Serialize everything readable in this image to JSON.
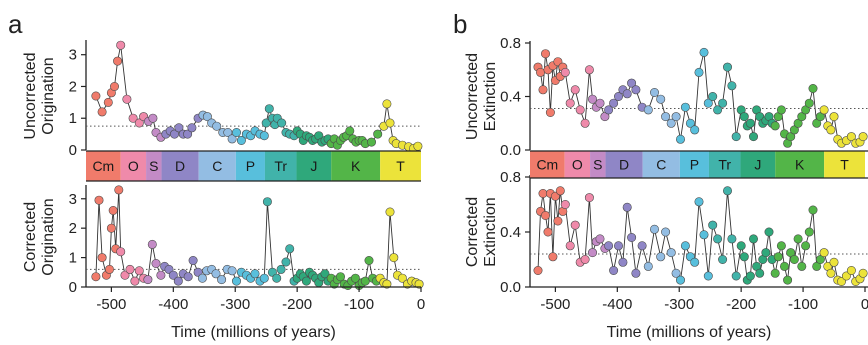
{
  "periods": [
    {
      "label": "Cm",
      "start": -541,
      "end": -485,
      "color": "#f07b6b"
    },
    {
      "label": "O",
      "start": -485,
      "end": -444,
      "color": "#ef8aaa"
    },
    {
      "label": "S",
      "start": -444,
      "end": -419,
      "color": "#c38bc6"
    },
    {
      "label": "D",
      "start": -419,
      "end": -359,
      "color": "#8f86c6"
    },
    {
      "label": "C",
      "start": -359,
      "end": -299,
      "color": "#93bde3"
    },
    {
      "label": "P",
      "start": -299,
      "end": -252,
      "color": "#58bfdc"
    },
    {
      "label": "Tr",
      "start": -252,
      "end": -201,
      "color": "#41b3aa"
    },
    {
      "label": "J",
      "start": -201,
      "end": -145,
      "color": "#2fa87b"
    },
    {
      "label": "K",
      "start": -145,
      "end": -66,
      "color": "#53b548"
    },
    {
      "label": "T",
      "start": -66,
      "end": 0,
      "color": "#ece33a"
    }
  ],
  "chart_data": [
    {
      "panel": "a",
      "type": "line",
      "ylabel": [
        "Uncorrected",
        "Origination"
      ],
      "ylim": [
        0,
        3.4
      ],
      "yticks": [
        "0",
        "1",
        "2",
        "3"
      ],
      "mean": 0.75,
      "x": [
        -525,
        -515,
        -505,
        -500,
        -495,
        -490,
        -485,
        -475,
        -465,
        -455,
        -448,
        -440,
        -433,
        -428,
        -420,
        -412,
        -405,
        -398,
        -391,
        -384,
        -377,
        -370,
        -360,
        -352,
        -345,
        -338,
        -330,
        -320,
        -312,
        -305,
        -298,
        -290,
        -282,
        -275,
        -268,
        -260,
        -253,
        -250,
        -245,
        -240,
        -236,
        -232,
        -225,
        -218,
        -212,
        -205,
        -200,
        -195,
        -190,
        -185,
        -180,
        -175,
        -170,
        -165,
        -160,
        -155,
        -150,
        -145,
        -140,
        -135,
        -130,
        -125,
        -120,
        -115,
        -110,
        -105,
        -100,
        -95,
        -90,
        -80,
        -70,
        -60,
        -55,
        -50,
        -45,
        -40,
        -30,
        -20,
        -12,
        -5
      ],
      "y": [
        1.7,
        1.2,
        1.5,
        1.8,
        2.0,
        2.8,
        3.3,
        1.6,
        1.0,
        0.85,
        1.05,
        0.9,
        1.0,
        0.55,
        0.4,
        0.5,
        0.6,
        0.5,
        0.7,
        0.5,
        0.5,
        0.7,
        1.0,
        1.1,
        1.05,
        0.85,
        0.75,
        0.55,
        0.55,
        0.35,
        0.55,
        0.3,
        0.5,
        0.45,
        0.6,
        0.5,
        0.45,
        0.85,
        1.3,
        1.0,
        0.8,
        1.0,
        0.85,
        0.55,
        0.5,
        0.45,
        0.6,
        0.5,
        0.3,
        0.45,
        0.4,
        0.3,
        0.35,
        0.45,
        0.25,
        0.3,
        0.35,
        0.2,
        0.35,
        0.15,
        0.3,
        0.4,
        0.45,
        0.6,
        0.35,
        0.25,
        0.3,
        0.3,
        0.2,
        0.25,
        0.5,
        0.75,
        1.45,
        0.85,
        0.3,
        0.2,
        0.15,
        0.1,
        0.05,
        0.12
      ]
    },
    {
      "panel": "a",
      "type": "line",
      "ylabel": [
        "Corrected",
        "Origination"
      ],
      "ylim": [
        0,
        3.4
      ],
      "yticks": [
        "0",
        "1",
        "2",
        "3"
      ],
      "mean": 0.6,
      "x": [
        -525,
        -520,
        -515,
        -508,
        -503,
        -500,
        -497,
        -493,
        -488,
        -485,
        -478,
        -470,
        -462,
        -455,
        -448,
        -441,
        -434,
        -428,
        -420,
        -414,
        -407,
        -400,
        -392,
        -384,
        -376,
        -368,
        -360,
        -353,
        -346,
        -338,
        -331,
        -322,
        -313,
        -305,
        -298,
        -290,
        -282,
        -275,
        -268,
        -260,
        -253,
        -248,
        -240,
        -233,
        -226,
        -218,
        -212,
        -205,
        -200,
        -195,
        -190,
        -185,
        -180,
        -175,
        -170,
        -165,
        -160,
        -155,
        -150,
        -145,
        -140,
        -135,
        -130,
        -124,
        -118,
        -112,
        -106,
        -100,
        -95,
        -90,
        -84,
        -78,
        -72,
        -66,
        -60,
        -55,
        -50,
        -44,
        -38,
        -30,
        -22,
        -15,
        -8,
        -3
      ],
      "y": [
        0.35,
        2.95,
        1.0,
        0.4,
        0.6,
        2.0,
        2.6,
        1.3,
        3.3,
        1.2,
        0.4,
        0.6,
        0.2,
        0.55,
        0.3,
        0.25,
        1.45,
        0.8,
        0.4,
        0.7,
        0.6,
        0.4,
        0.2,
        0.45,
        0.35,
        0.9,
        0.5,
        0.3,
        0.55,
        0.6,
        0.45,
        0.25,
        0.6,
        0.55,
        0.2,
        0.5,
        0.4,
        0.3,
        0.45,
        0.2,
        0.3,
        2.9,
        0.5,
        0.3,
        0.6,
        0.85,
        1.3,
        0.2,
        0.3,
        0.45,
        0.35,
        0.2,
        0.5,
        0.4,
        0.3,
        0.15,
        0.35,
        0.45,
        0.2,
        0.3,
        0.1,
        0.25,
        0.35,
        0.1,
        0.05,
        0.2,
        0.3,
        0.05,
        0.15,
        0.2,
        0.9,
        0.3,
        0.2,
        0.3,
        0.15,
        0.1,
        2.55,
        1.0,
        0.4,
        0.3,
        0.1,
        0.2,
        0.15,
        0.1
      ]
    },
    {
      "panel": "b",
      "type": "line",
      "ylabel": [
        "Uncorrected",
        "Extinction"
      ],
      "ylim": [
        0,
        0.8
      ],
      "yticks": [
        "0.0",
        "0.4",
        "0.8"
      ],
      "mean": 0.31,
      "x": [
        -528,
        -524,
        -520,
        -516,
        -512,
        -508,
        -504,
        -500,
        -496,
        -492,
        -488,
        -484,
        -476,
        -468,
        -460,
        -452,
        -445,
        -440,
        -434,
        -428,
        -420,
        -414,
        -406,
        -398,
        -391,
        -384,
        -377,
        -370,
        -360,
        -350,
        -340,
        -330,
        -322,
        -313,
        -305,
        -298,
        -290,
        -282,
        -275,
        -268,
        -260,
        -253,
        -246,
        -238,
        -230,
        -222,
        -215,
        -208,
        -200,
        -195,
        -190,
        -185,
        -180,
        -175,
        -170,
        -165,
        -160,
        -155,
        -150,
        -145,
        -140,
        -135,
        -130,
        -125,
        -120,
        -114,
        -108,
        -102,
        -96,
        -90,
        -84,
        -78,
        -72,
        -66,
        -60,
        -55,
        -50,
        -44,
        -38,
        -30,
        -22,
        -15,
        -8,
        -3
      ],
      "y": [
        0.62,
        0.58,
        0.45,
        0.72,
        0.6,
        0.28,
        0.63,
        0.52,
        0.66,
        0.55,
        0.62,
        0.58,
        0.35,
        0.45,
        0.3,
        0.2,
        0.6,
        0.38,
        0.32,
        0.35,
        0.25,
        0.3,
        0.35,
        0.4,
        0.45,
        0.42,
        0.5,
        0.45,
        0.32,
        0.3,
        0.43,
        0.38,
        0.25,
        0.2,
        0.25,
        0.08,
        0.32,
        0.2,
        0.15,
        0.58,
        0.73,
        0.35,
        0.4,
        0.3,
        0.35,
        0.62,
        0.48,
        0.1,
        0.3,
        0.25,
        0.18,
        0.2,
        0.1,
        0.3,
        0.25,
        0.2,
        0.22,
        0.25,
        0.2,
        0.18,
        0.25,
        0.3,
        0.12,
        0.05,
        0.1,
        0.15,
        0.2,
        0.25,
        0.3,
        0.35,
        0.46,
        0.2,
        0.25,
        0.3,
        0.18,
        0.15,
        0.25,
        0.08,
        0.05,
        0.07,
        0.1,
        0.05,
        0.06,
        0.1
      ]
    },
    {
      "panel": "b",
      "type": "line",
      "ylabel": [
        "Corrected",
        "Extinction"
      ],
      "ylim": [
        0,
        0.8
      ],
      "yticks": [
        "0.0",
        "0.4",
        "0.8"
      ],
      "mean": 0.24,
      "x": [
        -528,
        -524,
        -520,
        -516,
        -512,
        -508,
        -504,
        -500,
        -496,
        -492,
        -488,
        -484,
        -476,
        -468,
        -460,
        -452,
        -445,
        -440,
        -434,
        -428,
        -420,
        -414,
        -406,
        -398,
        -391,
        -384,
        -377,
        -370,
        -360,
        -350,
        -340,
        -330,
        -322,
        -313,
        -305,
        -298,
        -290,
        -282,
        -275,
        -268,
        -260,
        -253,
        -246,
        -238,
        -230,
        -222,
        -215,
        -208,
        -200,
        -195,
        -190,
        -185,
        -180,
        -175,
        -170,
        -165,
        -160,
        -155,
        -150,
        -145,
        -140,
        -135,
        -130,
        -125,
        -120,
        -114,
        -108,
        -102,
        -96,
        -90,
        -84,
        -78,
        -72,
        -66,
        -60,
        -55,
        -50,
        -44,
        -38,
        -30,
        -22,
        -15,
        -8,
        -3
      ],
      "y": [
        0.12,
        0.55,
        0.68,
        0.52,
        0.4,
        0.68,
        0.22,
        0.66,
        0.48,
        0.7,
        0.55,
        0.6,
        0.3,
        0.45,
        0.18,
        0.2,
        0.65,
        0.25,
        0.33,
        0.35,
        0.28,
        0.3,
        0.12,
        0.3,
        0.18,
        0.58,
        0.36,
        0.1,
        0.3,
        0.15,
        0.42,
        0.22,
        0.4,
        0.25,
        0.1,
        0.05,
        0.3,
        0.22,
        0.18,
        0.62,
        0.38,
        0.08,
        0.45,
        0.35,
        0.2,
        0.7,
        0.35,
        0.08,
        0.3,
        0.22,
        0.05,
        0.08,
        0.35,
        0.15,
        0.1,
        0.2,
        0.25,
        0.4,
        0.2,
        0.1,
        0.22,
        0.3,
        0.15,
        0.05,
        0.25,
        0.2,
        0.35,
        0.15,
        0.3,
        0.4,
        0.56,
        0.15,
        0.2,
        0.25,
        0.15,
        0.1,
        0.18,
        0.05,
        0.04,
        0.08,
        0.12,
        0.04,
        0.06,
        0.1
      ]
    }
  ],
  "labels": {
    "panel_a": "a",
    "panel_b": "b",
    "xlabel": "Time (millions of years)",
    "xticks": [
      "-500",
      "-400",
      "-300",
      "-200",
      "-100",
      "0"
    ]
  }
}
